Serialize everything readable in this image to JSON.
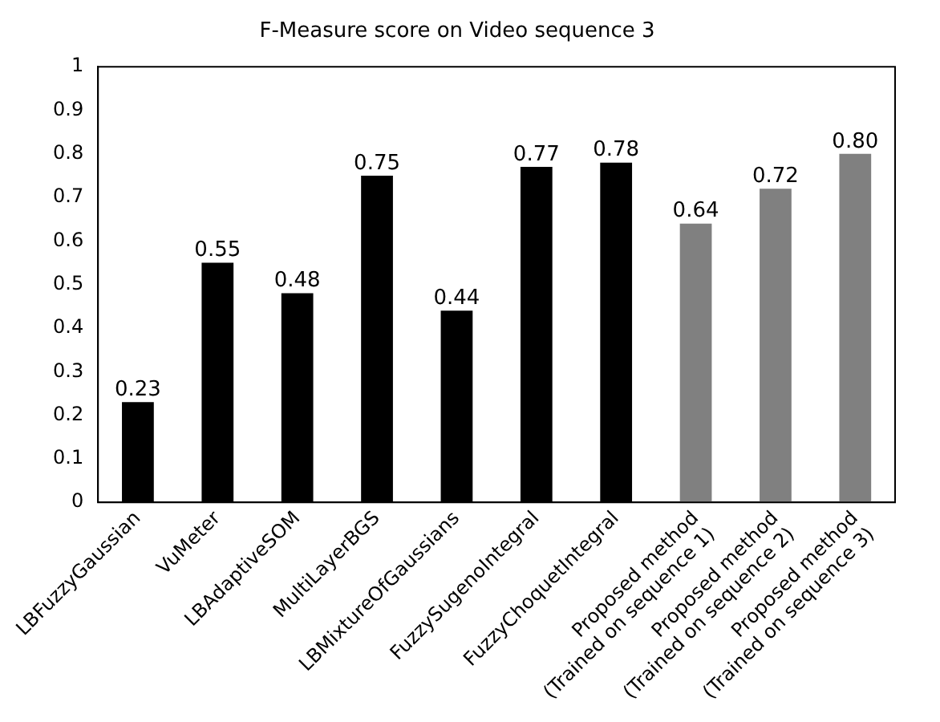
{
  "chart_data": {
    "type": "bar",
    "title": "F-Measure score on Video sequence 3",
    "categories": [
      "LBFuzzyGaussian",
      "VuMeter",
      "LBAdaptiveSOM",
      "MultiLayerBGS",
      "LBMixtureOfGaussians",
      "FuzzySugenoIntegral",
      "FuzzyChoquetIntegral",
      "Proposed method (Trained on sequence 1)",
      "Proposed method (Trained on sequence 2)",
      "Proposed method (Trained on sequence 3)"
    ],
    "values": [
      0.23,
      0.55,
      0.48,
      0.75,
      0.44,
      0.77,
      0.78,
      0.64,
      0.72,
      0.8
    ],
    "value_labels": [
      "0.23",
      "0.55",
      "0.48",
      "0.75",
      "0.44",
      "0.77",
      "0.78",
      "0.64",
      "0.72",
      "0.80"
    ],
    "colors": [
      "#000000",
      "#000000",
      "#000000",
      "#000000",
      "#000000",
      "#000000",
      "#000000",
      "#808080",
      "#808080",
      "#808080"
    ],
    "ylim": [
      0,
      1
    ],
    "yticks": [
      0,
      0.1,
      0.2,
      0.3,
      0.4,
      0.5,
      0.6,
      0.7,
      0.8,
      0.9,
      1
    ],
    "grid": false,
    "legend": false
  }
}
